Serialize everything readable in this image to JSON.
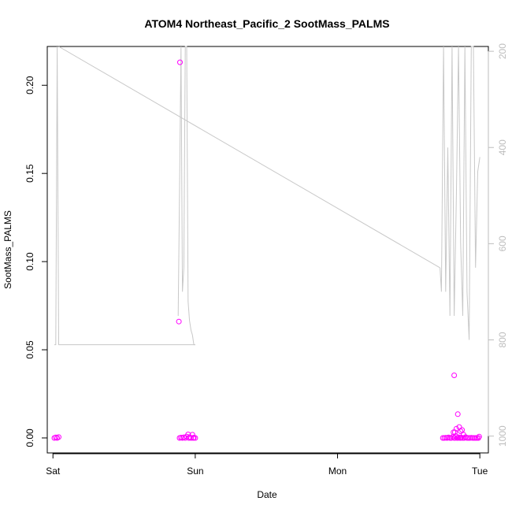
{
  "chart_data": {
    "type": "scatter",
    "title": "ATOM4 Northeast_Pacific_2 SootMass_PALMS",
    "xlabel": "Date",
    "ylabel": "SootMass_PALMS",
    "x_ticks": [
      "Sat",
      "Sun",
      "Mon",
      "Tue"
    ],
    "x_range_days": [
      -0.04,
      3.06
    ],
    "ylim": [
      -0.0085,
      0.222
    ],
    "y_ticks": [
      0.0,
      0.05,
      0.1,
      0.15,
      0.2
    ],
    "y_tick_labels": [
      "0.00",
      "0.05",
      "0.10",
      "0.15",
      "0.20"
    ],
    "right_axis": {
      "label": "",
      "ticks": [
        200,
        400,
        600,
        800,
        1000
      ],
      "range_top": 190,
      "range_bottom": 1035,
      "reversed": true,
      "color": "#bdbdbd"
    },
    "grid": false,
    "series": [
      {
        "kind": "points",
        "marker": "open-circle",
        "color": "#ff00ff",
        "x_days": [
          0.01,
          0.02,
          0.03,
          0.04,
          0.89,
          0.9,
          0.91,
          0.92,
          0.93,
          0.94,
          0.95,
          0.955,
          0.96,
          0.97,
          0.98,
          0.985,
          0.99,
          1.0,
          0.885,
          0.893,
          2.74,
          2.75,
          2.76,
          2.77,
          2.78,
          2.79,
          2.8,
          2.81,
          2.82,
          2.825,
          2.83,
          2.84,
          2.845,
          2.85,
          2.86,
          2.865,
          2.87,
          2.88,
          2.89,
          2.9,
          2.91,
          2.92,
          2.93,
          2.94,
          2.95,
          2.96,
          2.97,
          2.98,
          2.99,
          2.995,
          2.815,
          2.825,
          2.835,
          2.845,
          2.855,
          2.865,
          2.875,
          2.885,
          2.82
        ],
        "y": [
          0.0,
          0.0003,
          0.0,
          0.0005,
          0.0,
          0.0002,
          0.0,
          0.0004,
          0.0,
          0.0008,
          0.002,
          0.0,
          0.0005,
          0.0,
          0.0018,
          0.0,
          0.0002,
          0.0,
          0.066,
          0.213,
          0.0,
          0.0,
          0.0001,
          0.0,
          0.0003,
          0.0,
          0.0,
          0.0006,
          0.0,
          0.0,
          0.0011,
          0.0,
          0.0,
          0.0004,
          0.0,
          0.0,
          0.0002,
          0.0,
          0.0,
          0.0005,
          0.0,
          0.0,
          0.0,
          0.0001,
          0.0,
          0.0,
          0.0,
          0.0,
          0.0,
          0.0008,
          0.0032,
          0.0032,
          0.0052,
          0.0135,
          0.0062,
          0.0038,
          0.0045,
          0.0018,
          0.0355
        ]
      },
      {
        "kind": "line",
        "axis": "right",
        "color": "#c8c8c8",
        "x_days": [
          0.01,
          0.02,
          0.03,
          0.04,
          1.0
        ],
        "values": [
          810,
          810,
          190,
          810,
          810
        ]
      },
      {
        "kind": "line",
        "axis": "right",
        "color": "#c8c8c8",
        "x_days": [
          0.88,
          0.89,
          0.9,
          0.91,
          0.92,
          0.93,
          0.94,
          0.95,
          0.96,
          0.97,
          0.98,
          0.99,
          1.0
        ],
        "values": [
          750,
          480,
          190,
          700,
          650,
          190,
          190,
          720,
          760,
          780,
          790,
          810,
          810
        ]
      },
      {
        "kind": "line",
        "axis": "right",
        "color": "#c8c8c8",
        "x_days": [
          0.04,
          2.72
        ],
        "values": [
          190,
          650
        ]
      },
      {
        "kind": "line",
        "axis": "right",
        "color": "#c8c8c8",
        "x_days": [
          2.72,
          2.73,
          2.745,
          2.76,
          2.775,
          2.79,
          2.805,
          2.82,
          2.835,
          2.85,
          2.865,
          2.88,
          2.895,
          2.91,
          2.925,
          2.94,
          2.955,
          2.97,
          2.985,
          3.0
        ],
        "values": [
          650,
          700,
          190,
          700,
          400,
          750,
          190,
          750,
          500,
          190,
          600,
          750,
          190,
          700,
          800,
          190,
          190,
          650,
          450,
          420
        ]
      }
    ]
  }
}
